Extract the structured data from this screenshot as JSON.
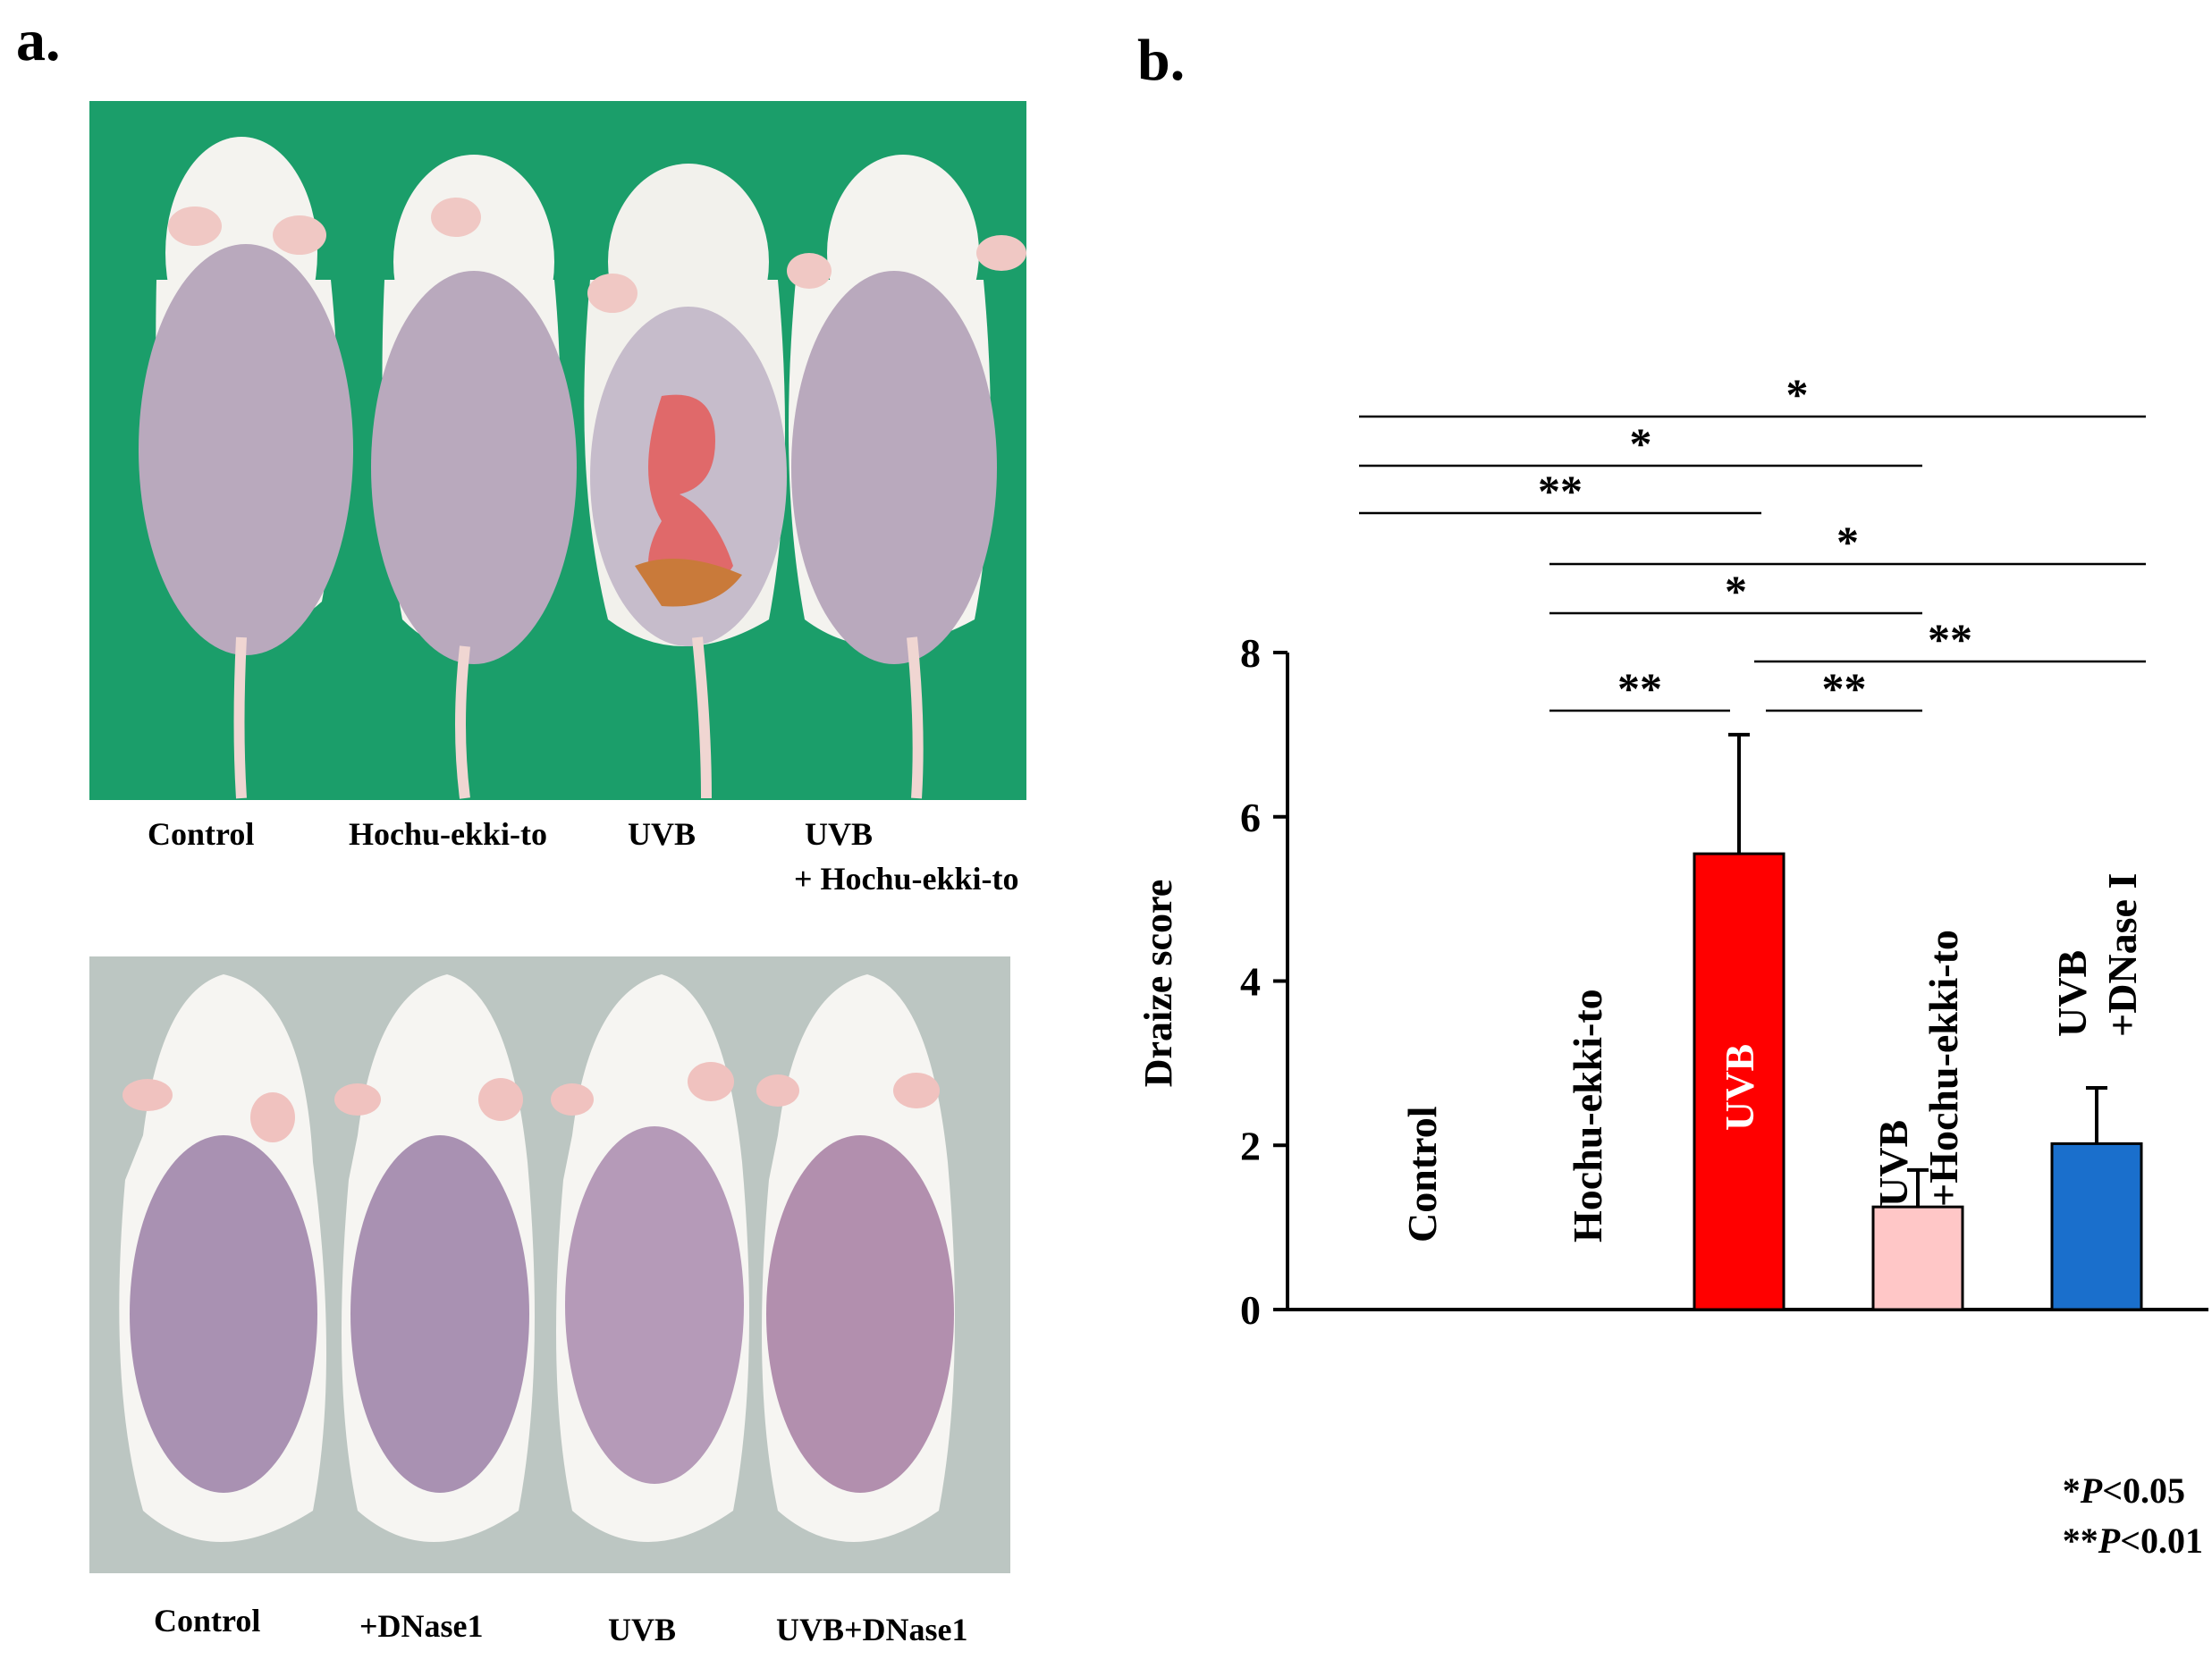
{
  "panel_a": {
    "label": "a.",
    "top_photo": {
      "captions": [
        "Control",
        "Hochu-ekki-to",
        "UVB",
        "UVB",
        "+ Hochu-ekki-to"
      ]
    },
    "bottom_photo": {
      "captions": [
        "Control",
        "+DNase1",
        "UVB",
        "UVB+DNase1"
      ]
    }
  },
  "panel_b": {
    "label": "b.",
    "pvalue_legend": {
      "line1_star": "*",
      "line1_p": "P",
      "line1_rest": "<0.05",
      "line2_star": "**",
      "line2_p": "P",
      "line2_rest": "<0.01"
    }
  },
  "colors": {
    "uvb": "#ff0000",
    "uvb_hochu": "#ffc7c7",
    "uvb_dnase": "#1a6fcc",
    "photo_bg_top": "#1b9e6a",
    "photo_bg_bottom": "#bcc6c2"
  },
  "chart_data": {
    "type": "bar",
    "ylabel": "Draize score",
    "ylim": [
      0,
      8
    ],
    "yticks": [
      0,
      2,
      4,
      6,
      8
    ],
    "categories": [
      "Control",
      "Hochu-ekki-to",
      "UVB",
      "UVB\n+Hochu-ekki-to",
      "UVB\n+DNase I"
    ],
    "category_lines": [
      [
        "Control"
      ],
      [
        "Hochu-ekki-to"
      ],
      [
        "UVB"
      ],
      [
        "UVB",
        "+Hochu-ekki-to"
      ],
      [
        "UVB",
        "+DNase I"
      ]
    ],
    "values": [
      0,
      0,
      5.55,
      1.25,
      2.02
    ],
    "errors": [
      0,
      0,
      1.45,
      0.45,
      0.68
    ],
    "bar_colors": [
      "#ffffff",
      "#ffffff",
      "#ff0000",
      "#ffc7c7",
      "#1a6fcc"
    ],
    "significance": [
      {
        "from": 0,
        "to": 4,
        "label": "*",
        "row": 0
      },
      {
        "from": 0,
        "to": 3,
        "label": "*",
        "row": 1
      },
      {
        "from": 0,
        "to": 2,
        "label": "**",
        "row": 2
      },
      {
        "from": 1,
        "to": 4,
        "label": "*",
        "row": 3
      },
      {
        "from": 1,
        "to": 3,
        "label": "*",
        "row": 4
      },
      {
        "from": 2,
        "to": 4,
        "label": "**",
        "row": 5
      },
      {
        "from": 1,
        "to": 2,
        "label": "**",
        "row": 6
      },
      {
        "from": 2,
        "to": 3,
        "label": "**",
        "row": 6
      }
    ]
  }
}
